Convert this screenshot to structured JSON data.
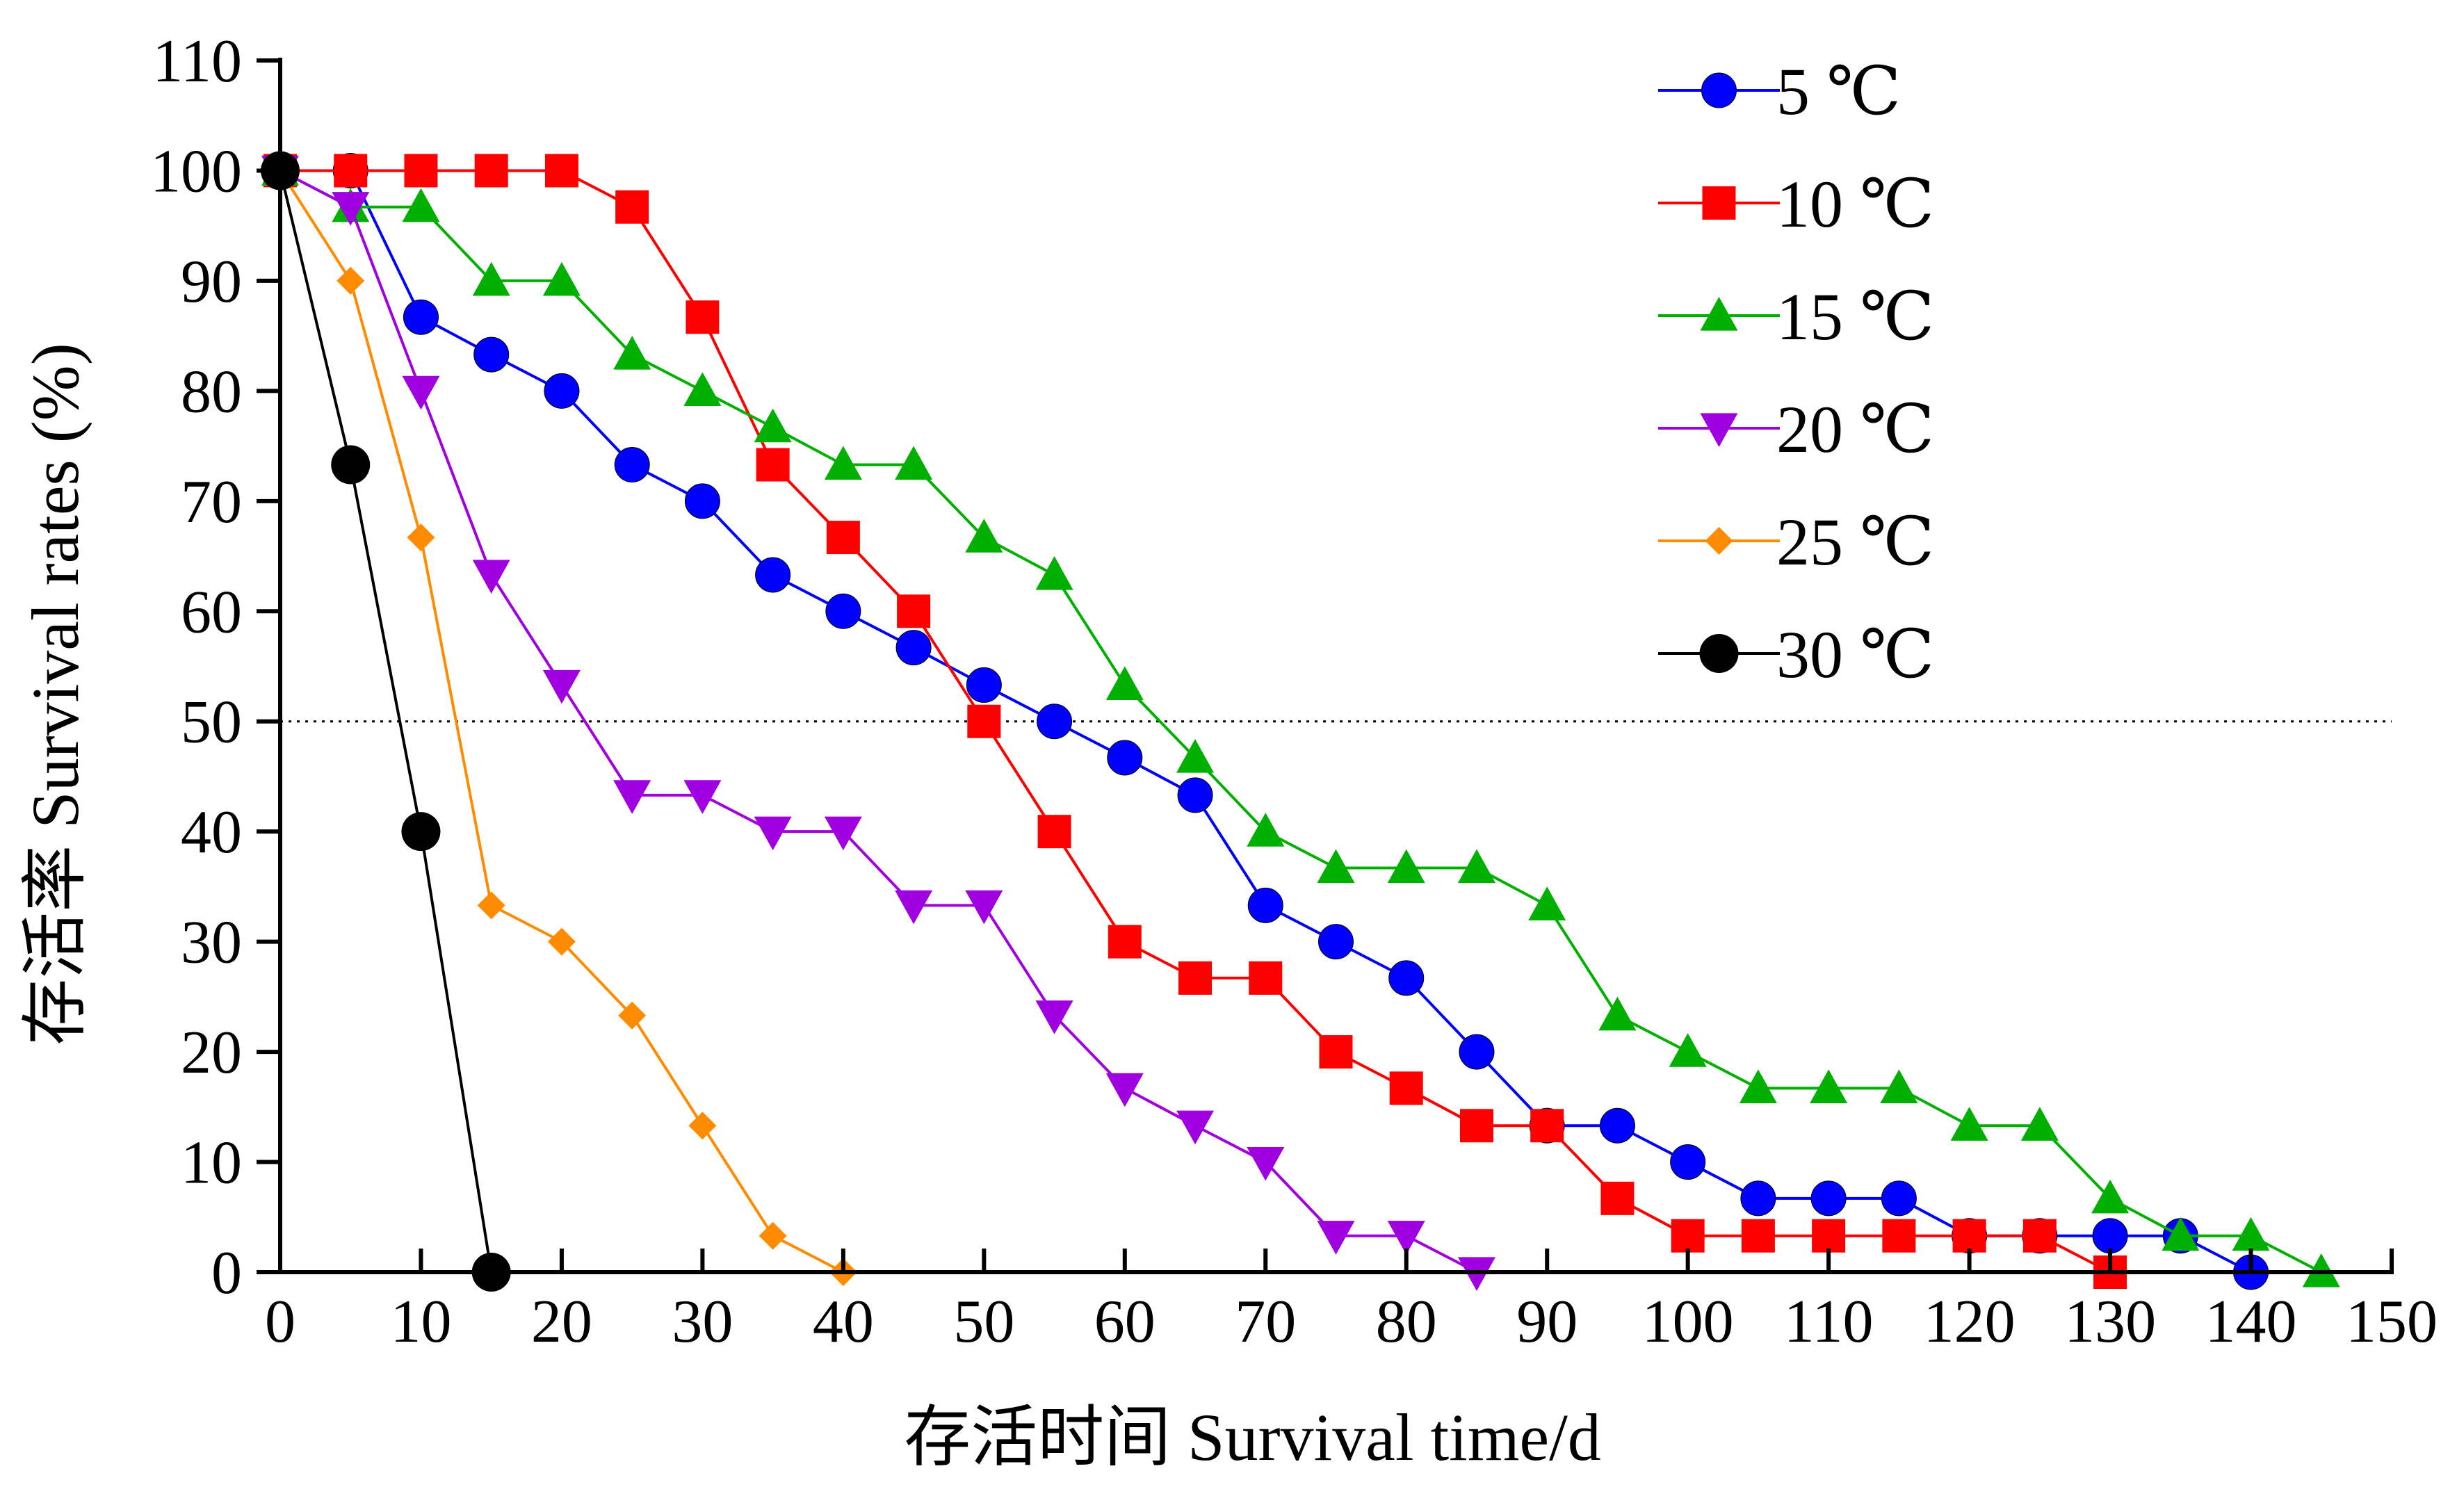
{
  "chart_data": {
    "type": "line",
    "title": "",
    "xlabel": "存活时间  Survival time/d",
    "ylabel": "存活率  Survival rates (%)",
    "xlim": [
      0,
      150
    ],
    "ylim": [
      0,
      110
    ],
    "xticks": [
      "0",
      "10",
      "20",
      "30",
      "40",
      "50",
      "60",
      "70",
      "80",
      "90",
      "100",
      "110",
      "120",
      "130",
      "140",
      "150"
    ],
    "yticks": [
      "0",
      "10",
      "20",
      "30",
      "40",
      "50",
      "60",
      "70",
      "80",
      "90",
      "100",
      "110"
    ],
    "grid": false,
    "legend_position": "top-right",
    "reference_line": {
      "y": 50,
      "style": "dotted"
    },
    "series": [
      {
        "name": "5 ℃",
        "color": "#0000ff",
        "marker": "circle",
        "x": [
          0,
          5,
          10,
          15,
          20,
          25,
          30,
          35,
          40,
          45,
          50,
          55,
          60,
          65,
          70,
          75,
          80,
          85,
          90,
          95,
          100,
          105,
          110,
          115,
          120,
          125,
          130,
          135,
          140
        ],
        "values": [
          100,
          100,
          86.7,
          83.3,
          80,
          73.3,
          70,
          63.3,
          60,
          56.7,
          53.3,
          50,
          46.7,
          43.3,
          33.3,
          30,
          26.7,
          20,
          13.3,
          13.3,
          10,
          6.7,
          6.7,
          6.7,
          3.3,
          3.3,
          3.3,
          3.3,
          0
        ]
      },
      {
        "name": "10 ℃",
        "color": "#ff0000",
        "marker": "square",
        "x": [
          0,
          5,
          10,
          15,
          20,
          25,
          30,
          35,
          40,
          45,
          50,
          55,
          60,
          65,
          70,
          75,
          80,
          85,
          90,
          95,
          100,
          105,
          110,
          115,
          120,
          125,
          130
        ],
        "values": [
          100,
          100,
          100,
          100,
          100,
          96.7,
          86.7,
          73.3,
          66.7,
          60,
          50,
          40,
          30,
          26.7,
          26.7,
          20,
          16.7,
          13.3,
          13.3,
          6.7,
          3.3,
          3.3,
          3.3,
          3.3,
          3.3,
          3.3,
          0
        ]
      },
      {
        "name": "15 ℃",
        "color": "#00b000",
        "marker": "triangle-up",
        "x": [
          0,
          5,
          10,
          15,
          20,
          25,
          30,
          35,
          40,
          45,
          50,
          55,
          60,
          65,
          70,
          75,
          80,
          85,
          90,
          95,
          100,
          105,
          110,
          115,
          120,
          125,
          130,
          135,
          140,
          145
        ],
        "values": [
          100,
          96.7,
          96.7,
          90,
          90,
          83.3,
          80,
          76.7,
          73.3,
          73.3,
          66.7,
          63.3,
          53.3,
          46.7,
          40,
          36.7,
          36.7,
          36.7,
          33.3,
          23.3,
          20,
          16.7,
          16.7,
          16.7,
          13.3,
          13.3,
          6.7,
          3.3,
          3.3,
          0
        ]
      },
      {
        "name": "20 ℃",
        "color": "#a000e0",
        "marker": "triangle-down",
        "x": [
          0,
          5,
          10,
          15,
          20,
          25,
          30,
          35,
          40,
          45,
          50,
          55,
          60,
          65,
          70,
          75,
          80,
          85
        ],
        "values": [
          100,
          96.7,
          80,
          63.3,
          53.3,
          43.3,
          43.3,
          40,
          40,
          33.3,
          33.3,
          23.3,
          16.7,
          13.3,
          10,
          3.3,
          3.3,
          0
        ]
      },
      {
        "name": "25 ℃",
        "color": "#ff8c00",
        "marker": "diamond",
        "x": [
          0,
          5,
          10,
          15,
          20,
          25,
          30,
          35,
          40
        ],
        "values": [
          100,
          90,
          66.7,
          33.3,
          30,
          23.3,
          13.3,
          3.3,
          0
        ]
      },
      {
        "name": "30 ℃",
        "color": "#000000",
        "marker": "circle-large",
        "x": [
          0,
          5,
          10,
          15
        ],
        "values": [
          100,
          73.3,
          40,
          0
        ]
      }
    ]
  }
}
